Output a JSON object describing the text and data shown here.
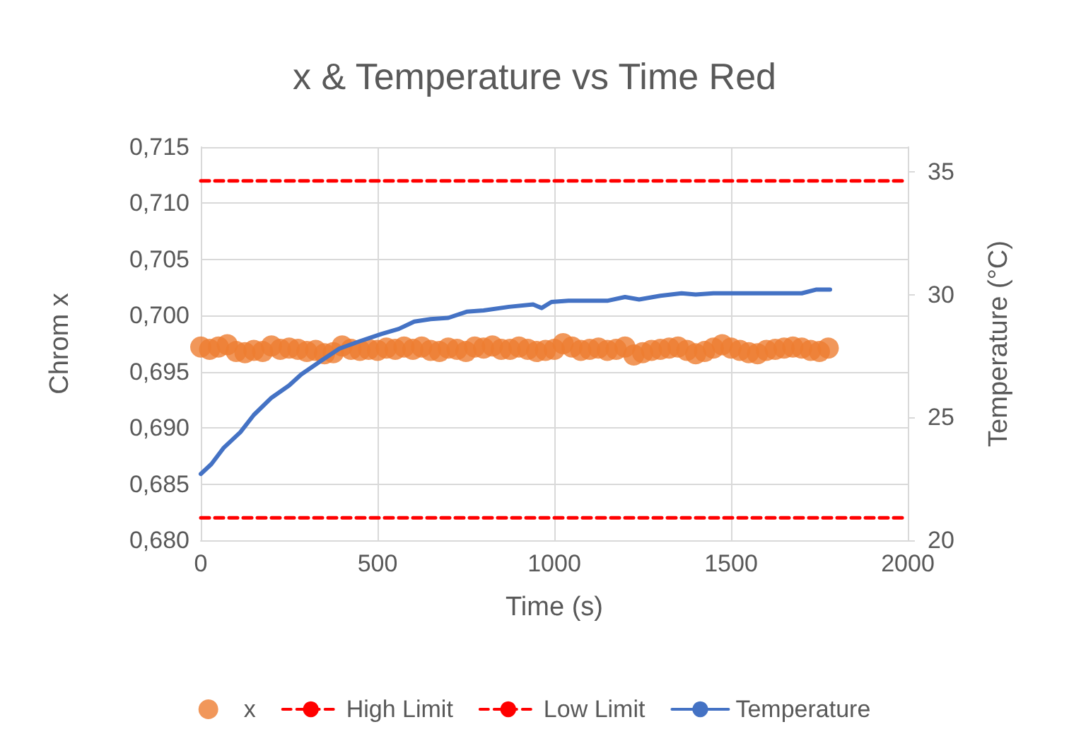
{
  "chart_data": {
    "type": "scatter",
    "title": "x & Temperature vs Time Red",
    "xlabel": "Time (s)",
    "ylabel": "Chrom x",
    "y2label": "Temperature (°C)",
    "xlim": [
      0,
      2000
    ],
    "xticks": [
      0,
      500,
      1000,
      1500,
      2000
    ],
    "ylim": [
      0.68,
      0.715
    ],
    "yticks": [
      {
        "value": 0.68,
        "label": "0,680"
      },
      {
        "value": 0.685,
        "label": "0,685"
      },
      {
        "value": 0.69,
        "label": "0,690"
      },
      {
        "value": 0.695,
        "label": "0,695"
      },
      {
        "value": 0.7,
        "label": "0,700"
      },
      {
        "value": 0.705,
        "label": "0,705"
      },
      {
        "value": 0.71,
        "label": "0,710"
      },
      {
        "value": 0.715,
        "label": "0,715"
      }
    ],
    "y2lim": [
      20,
      36
    ],
    "y2ticks": [
      20,
      25,
      30,
      35
    ],
    "grid": true,
    "legend": "bottom",
    "series": [
      {
        "name": "x",
        "marker": "circle",
        "color": "#ed7d31",
        "x": [
          0,
          25,
          50,
          75,
          100,
          125,
          150,
          175,
          200,
          225,
          250,
          275,
          300,
          325,
          350,
          375,
          400,
          425,
          450,
          475,
          500,
          525,
          550,
          575,
          600,
          625,
          650,
          675,
          700,
          725,
          750,
          775,
          800,
          825,
          850,
          875,
          900,
          925,
          950,
          975,
          1000,
          1025,
          1050,
          1075,
          1100,
          1125,
          1150,
          1175,
          1200,
          1225,
          1250,
          1275,
          1300,
          1325,
          1350,
          1375,
          1400,
          1425,
          1450,
          1475,
          1500,
          1525,
          1550,
          1575,
          1600,
          1625,
          1650,
          1675,
          1700,
          1725,
          1750,
          1775
        ],
        "values": [
          0.6972,
          0.697,
          0.6972,
          0.6974,
          0.6968,
          0.6967,
          0.6969,
          0.6968,
          0.6973,
          0.697,
          0.6971,
          0.697,
          0.6968,
          0.6969,
          0.6966,
          0.6967,
          0.6973,
          0.697,
          0.6969,
          0.697,
          0.6969,
          0.6971,
          0.697,
          0.6972,
          0.697,
          0.6972,
          0.6969,
          0.6968,
          0.6971,
          0.697,
          0.6968,
          0.6972,
          0.6971,
          0.6973,
          0.697,
          0.697,
          0.6972,
          0.697,
          0.6968,
          0.6969,
          0.697,
          0.6975,
          0.6972,
          0.6969,
          0.697,
          0.6971,
          0.6969,
          0.697,
          0.6972,
          0.6965,
          0.6967,
          0.6969,
          0.697,
          0.6971,
          0.6972,
          0.6969,
          0.6966,
          0.6968,
          0.6971,
          0.6974,
          0.6971,
          0.6969,
          0.6967,
          0.6966,
          0.6969,
          0.697,
          0.6971,
          0.6972,
          0.6971,
          0.6969,
          0.6968,
          0.6971
        ]
      },
      {
        "name": "High Limit",
        "type": "line",
        "line_style": "dashed",
        "color": "#ff0000",
        "x": [
          0,
          2000
        ],
        "values": [
          0.712,
          0.712
        ]
      },
      {
        "name": "Low Limit",
        "type": "line",
        "line_style": "dashed",
        "color": "#ff0000",
        "x": [
          0,
          2000
        ],
        "values": [
          0.682,
          0.682
        ]
      },
      {
        "name": "Temperature",
        "type": "line",
        "line_style": "solid",
        "axis": "y2",
        "color": "#4472c4",
        "x": [
          0,
          30,
          64,
          112,
          150,
          200,
          250,
          284,
          340,
          392,
          450,
          512,
          560,
          604,
          650,
          700,
          752,
          800,
          872,
          940,
          964,
          992,
          1040,
          1084,
          1152,
          1200,
          1240,
          1300,
          1360,
          1400,
          1450,
          1550,
          1650,
          1700,
          1740,
          1780
        ],
        "values": [
          22.7,
          23.1,
          23.75,
          24.4,
          25.1,
          25.8,
          26.3,
          26.75,
          27.3,
          27.8,
          28.1,
          28.4,
          28.6,
          28.9,
          29.0,
          29.05,
          29.3,
          29.35,
          29.5,
          29.6,
          29.45,
          29.7,
          29.75,
          29.75,
          29.75,
          29.9,
          29.8,
          29.95,
          30.05,
          30.0,
          30.05,
          30.05,
          30.05,
          30.05,
          30.2,
          30.2
        ]
      }
    ]
  }
}
